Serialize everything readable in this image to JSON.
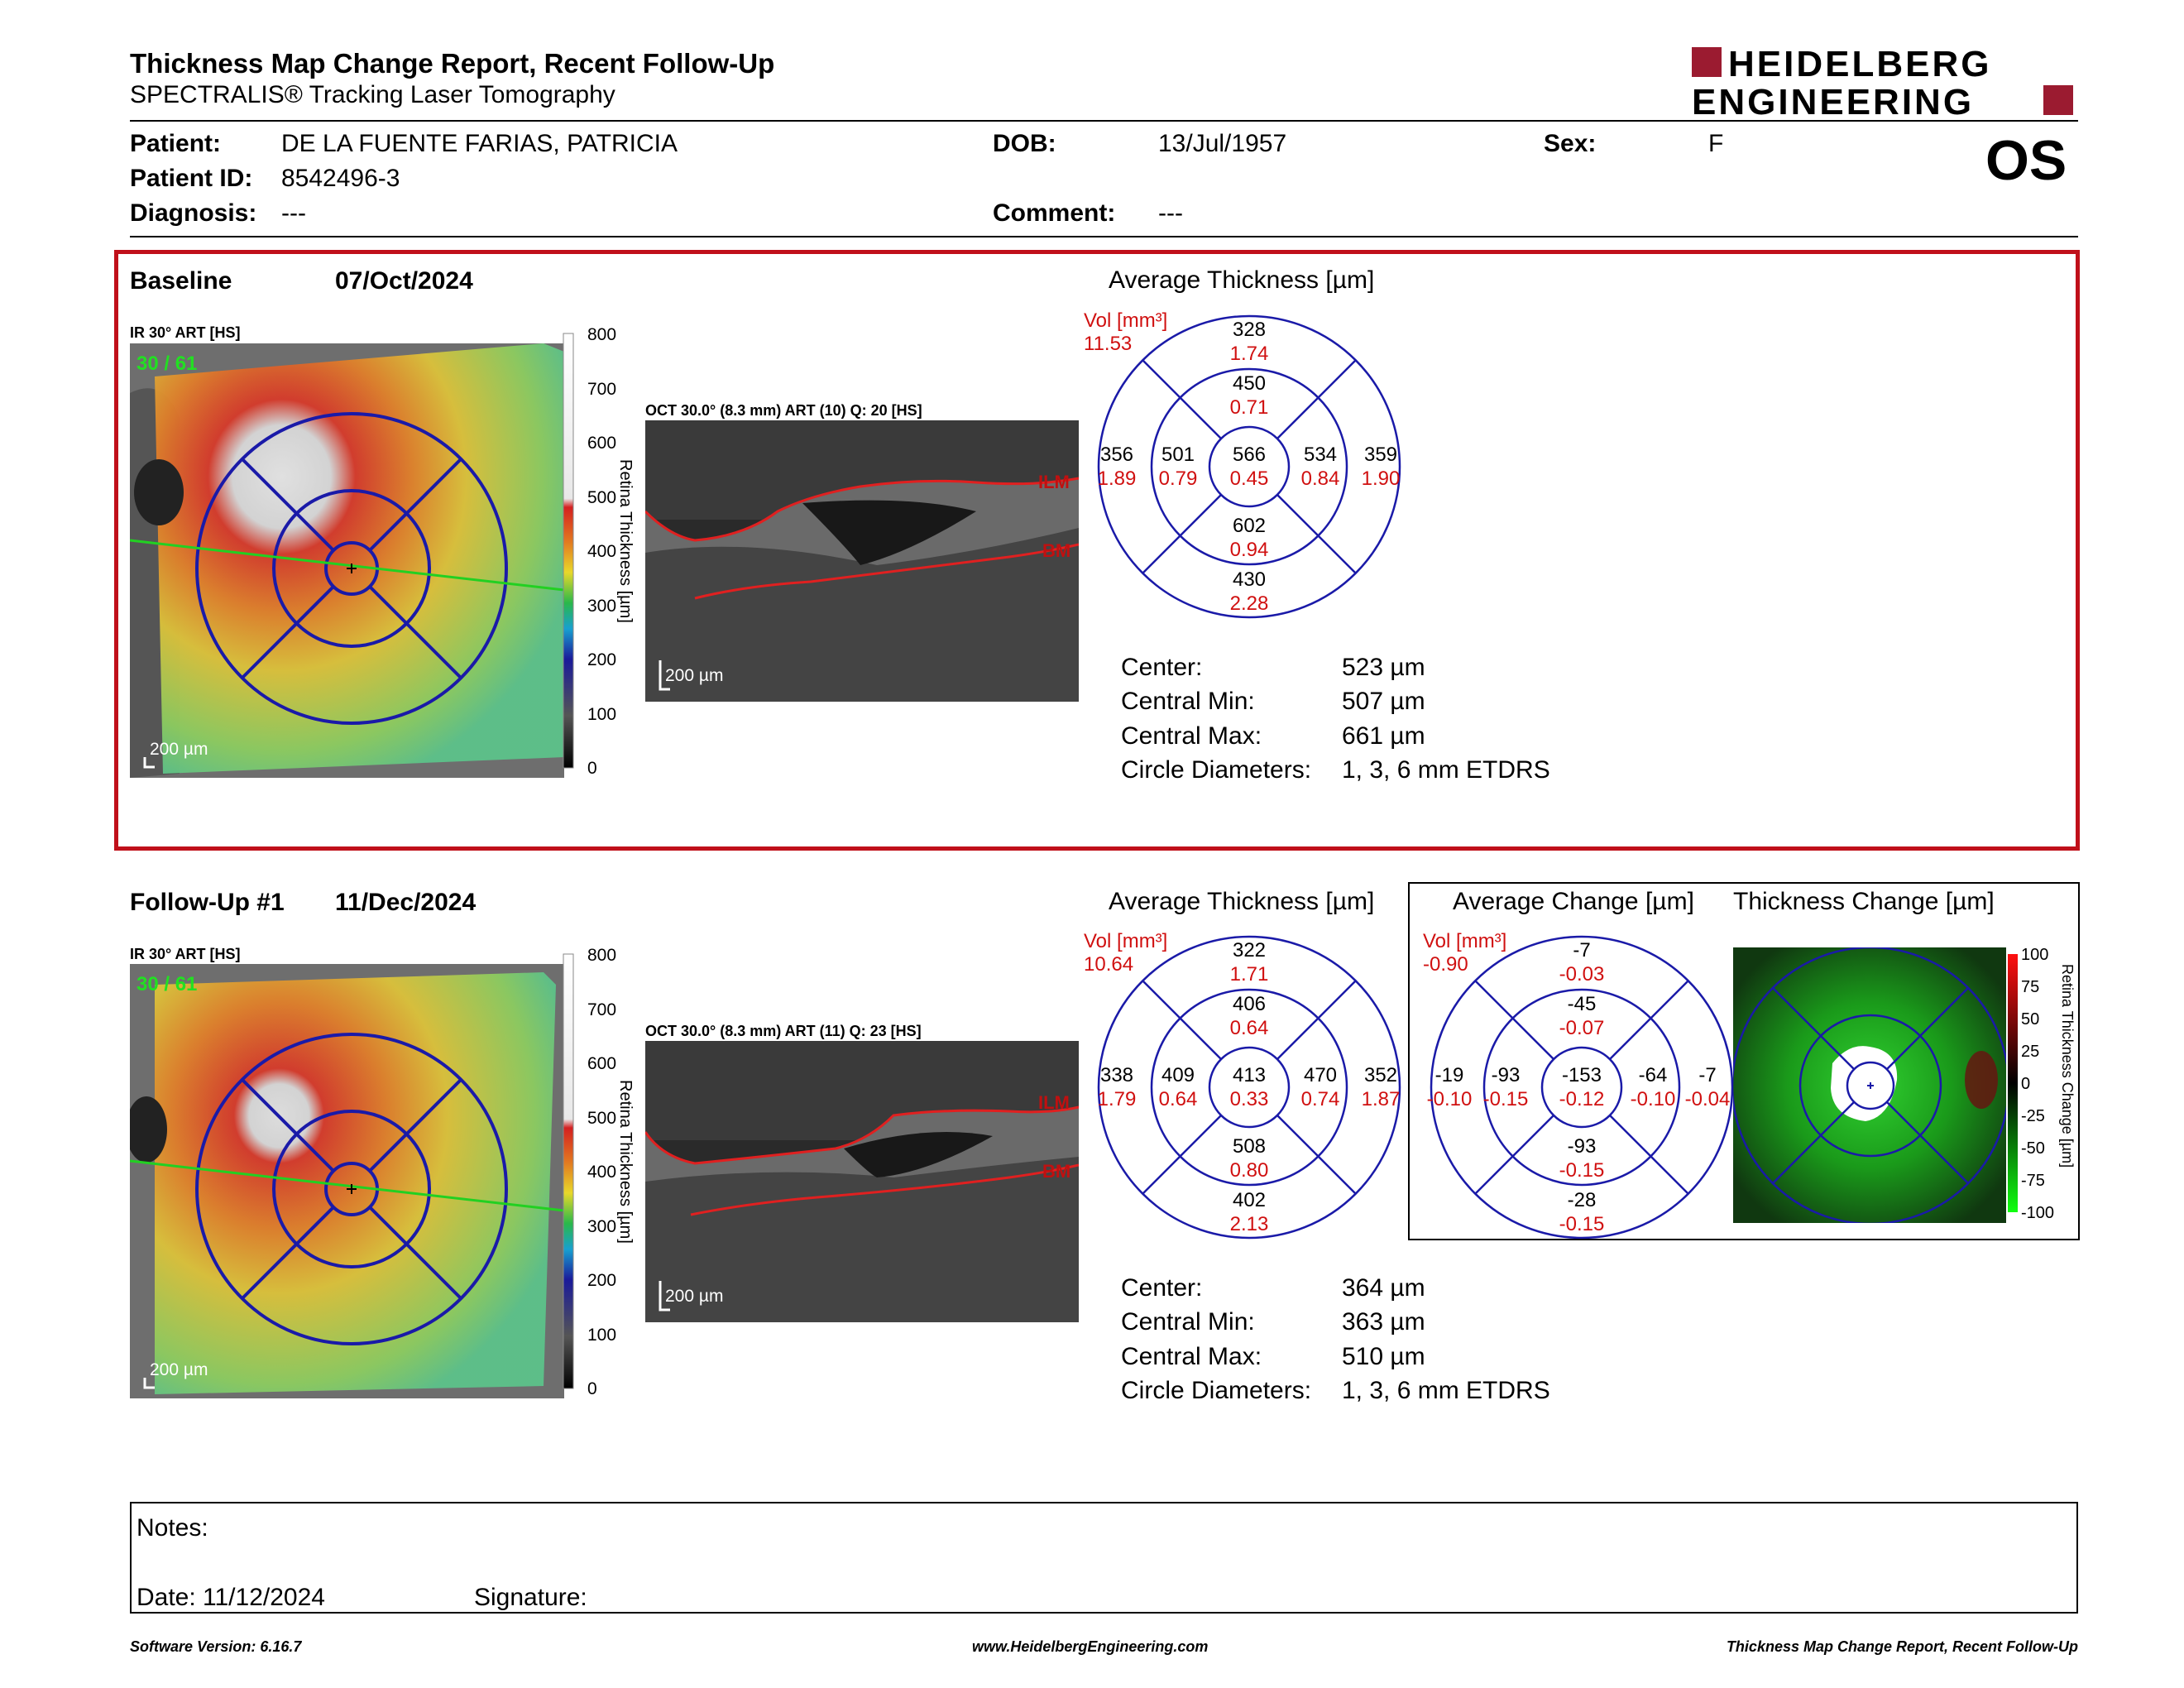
{
  "header": {
    "title": "Thickness Map Change Report, Recent Follow-Up",
    "subtitle": "SPECTRALIS® Tracking Laser Tomography",
    "logo_line1": "HEIDELBERG",
    "logo_line2": "ENGINEERING",
    "eye": "OS",
    "brand_color": "#9b1b30"
  },
  "patient": {
    "patient_label": "Patient:",
    "patient_name": "DE LA FUENTE FARIAS, PATRICIA",
    "dob_label": "DOB:",
    "dob": "13/Jul/1957",
    "sex_label": "Sex:",
    "sex": "F",
    "id_label": "Patient ID:",
    "id": "8542496-3",
    "diagnosis_label": "Diagnosis:",
    "diagnosis": "---",
    "comment_label": "Comment:",
    "comment": "---"
  },
  "baseline": {
    "title": "Baseline",
    "date": "07/Oct/2024",
    "ir_label": "IR 30° ART [HS]",
    "ir_overlay": "30 / 61",
    "scale_bar": "200 µm",
    "oct_label": "OCT 30.0° (8.3 mm) ART (10) Q: 20 [HS]",
    "oct_scale": "200 µm",
    "ilm": "ILM",
    "bm": "BM",
    "colorbar_ticks": [
      "800",
      "700",
      "600",
      "500",
      "400",
      "300",
      "200",
      "100",
      "0"
    ],
    "colorbar_title": "Retina Thickness [µm]",
    "avg_title": "Average Thickness [µm]",
    "vol_label": "Vol [mm³]",
    "vol_total": "11.53",
    "etdrs": {
      "outer_top": [
        "328",
        "1.74"
      ],
      "inner_top": [
        "450",
        "0.71"
      ],
      "outer_left": [
        "356",
        "1.89"
      ],
      "inner_left": [
        "501",
        "0.79"
      ],
      "center": [
        "566",
        "0.45"
      ],
      "inner_right": [
        "534",
        "0.84"
      ],
      "outer_right": [
        "359",
        "1.90"
      ],
      "inner_bottom": [
        "602",
        "0.94"
      ],
      "outer_bottom": [
        "430",
        "2.28"
      ]
    },
    "stats": {
      "center_label": "Center:",
      "center": "523 µm",
      "min_label": "Central Min:",
      "min": "507 µm",
      "max_label": "Central Max:",
      "max": "661 µm",
      "diam_label": "Circle Diameters:",
      "diam": "1, 3, 6 mm ETDRS"
    }
  },
  "followup": {
    "title": "Follow-Up #1",
    "date": "11/Dec/2024",
    "ir_label": "IR 30° ART [HS]",
    "ir_overlay": "30 / 61",
    "scale_bar": "200 µm",
    "oct_label": "OCT 30.0° (8.3 mm) ART (11) Q: 23 [HS]",
    "oct_scale": "200 µm",
    "ilm": "ILM",
    "bm": "BM",
    "colorbar_ticks": [
      "800",
      "700",
      "600",
      "500",
      "400",
      "300",
      "200",
      "100",
      "0"
    ],
    "colorbar_title": "Retina Thickness [µm]",
    "avg_title": "Average Thickness [µm]",
    "vol_label": "Vol [mm³]",
    "vol_total": "10.64",
    "etdrs": {
      "outer_top": [
        "322",
        "1.71"
      ],
      "inner_top": [
        "406",
        "0.64"
      ],
      "outer_left": [
        "338",
        "1.79"
      ],
      "inner_left": [
        "409",
        "0.64"
      ],
      "center": [
        "413",
        "0.33"
      ],
      "inner_right": [
        "470",
        "0.74"
      ],
      "outer_right": [
        "352",
        "1.87"
      ],
      "inner_bottom": [
        "508",
        "0.80"
      ],
      "outer_bottom": [
        "402",
        "2.13"
      ]
    },
    "change_title": "Average Change [µm]",
    "change_vol_label": "Vol [mm³]",
    "change_vol_total": "-0.90",
    "change": {
      "outer_top": [
        "-7",
        "-0.03"
      ],
      "inner_top": [
        "-45",
        "-0.07"
      ],
      "outer_left": [
        "-19",
        "-0.10"
      ],
      "inner_left": [
        "-93",
        "-0.15"
      ],
      "center": [
        "-153",
        "-0.12"
      ],
      "inner_right": [
        "-64",
        "-0.10"
      ],
      "outer_right": [
        "-7",
        "-0.04"
      ],
      "inner_bottom": [
        "-93",
        "-0.15"
      ],
      "outer_bottom": [
        "-28",
        "-0.15"
      ]
    },
    "thickness_change_title": "Thickness Change [µm]",
    "change_colorbar_ticks": [
      "100",
      "75",
      "50",
      "25",
      "0",
      "-25",
      "-50",
      "-75",
      "-100"
    ],
    "change_colorbar_title": "Retina Thickness Change [µm]",
    "stats": {
      "center_label": "Center:",
      "center": "364 µm",
      "min_label": "Central Min:",
      "min": "363 µm",
      "max_label": "Central Max:",
      "max": "510 µm",
      "diam_label": "Circle Diameters:",
      "diam": "1, 3, 6 mm ETDRS"
    }
  },
  "notes": {
    "notes_label": "Notes:",
    "date_label": "Date: 11/12/2024",
    "signature_label": "Signature:"
  },
  "footer": {
    "version": "Software Version: 6.16.7",
    "website": "www.HeidelbergEngineering.com",
    "report_name": "Thickness Map Change Report, Recent Follow-Up"
  }
}
